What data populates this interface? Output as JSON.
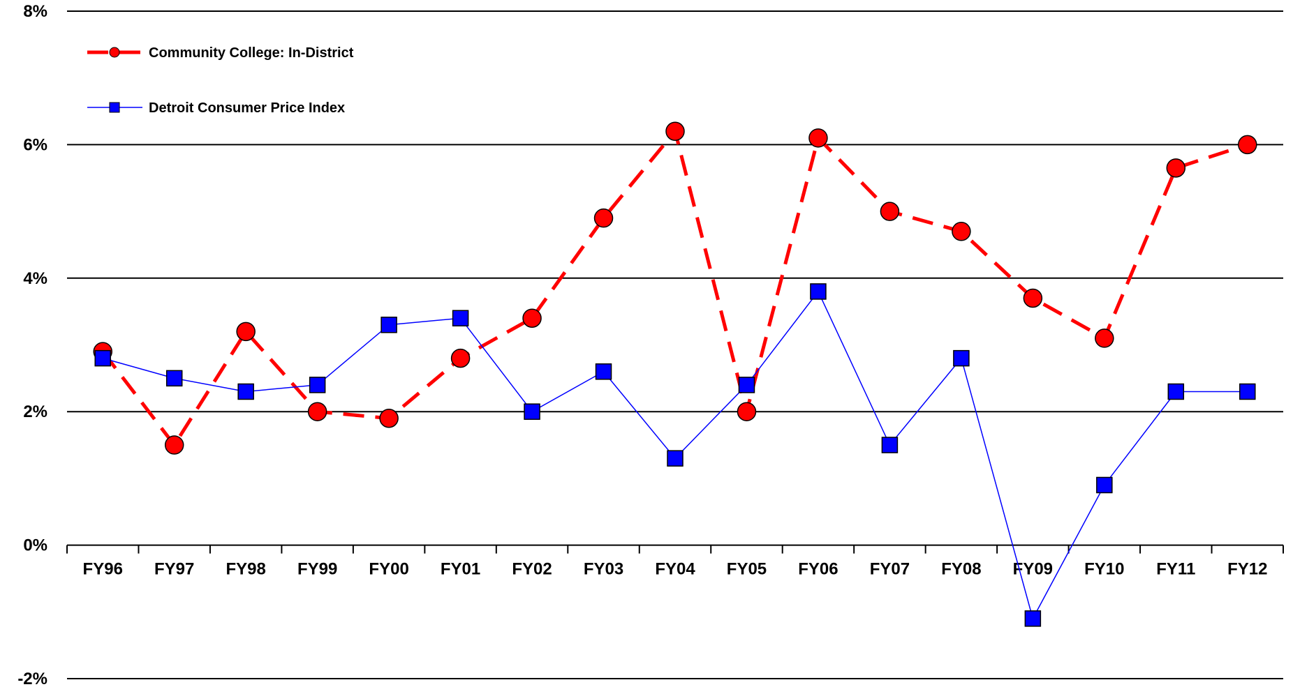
{
  "chart_data": {
    "type": "line",
    "title": "",
    "xlabel": "",
    "ylabel": "",
    "categories": [
      "FY96",
      "FY97",
      "FY98",
      "FY99",
      "FY00",
      "FY01",
      "FY02",
      "FY03",
      "FY04",
      "FY05",
      "FY06",
      "FY07",
      "FY08",
      "FY09",
      "FY10",
      "FY11",
      "FY12"
    ],
    "y_ticks": [
      -2,
      0,
      2,
      4,
      6,
      8
    ],
    "y_tick_labels": [
      "-2%",
      "0%",
      "2%",
      "4%",
      "6%",
      "8%"
    ],
    "ylim": [
      -2,
      8
    ],
    "grid": true,
    "legend_position": "top-left",
    "series": [
      {
        "name": "Community College: In-District",
        "color": "#ff0000",
        "line_style": "dashed",
        "marker": "circle",
        "values": [
          2.9,
          1.5,
          3.2,
          2.0,
          1.9,
          2.8,
          3.4,
          4.9,
          6.2,
          2.0,
          6.1,
          5.0,
          4.7,
          3.7,
          3.1,
          5.65,
          6.0
        ]
      },
      {
        "name": "Detroit Consumer Price Index",
        "color": "#0000ff",
        "line_style": "solid",
        "marker": "square",
        "values": [
          2.8,
          2.5,
          2.3,
          2.4,
          3.3,
          3.4,
          2.0,
          2.6,
          1.3,
          2.4,
          3.8,
          1.5,
          2.8,
          -1.1,
          0.9,
          2.3,
          2.3
        ]
      }
    ]
  }
}
